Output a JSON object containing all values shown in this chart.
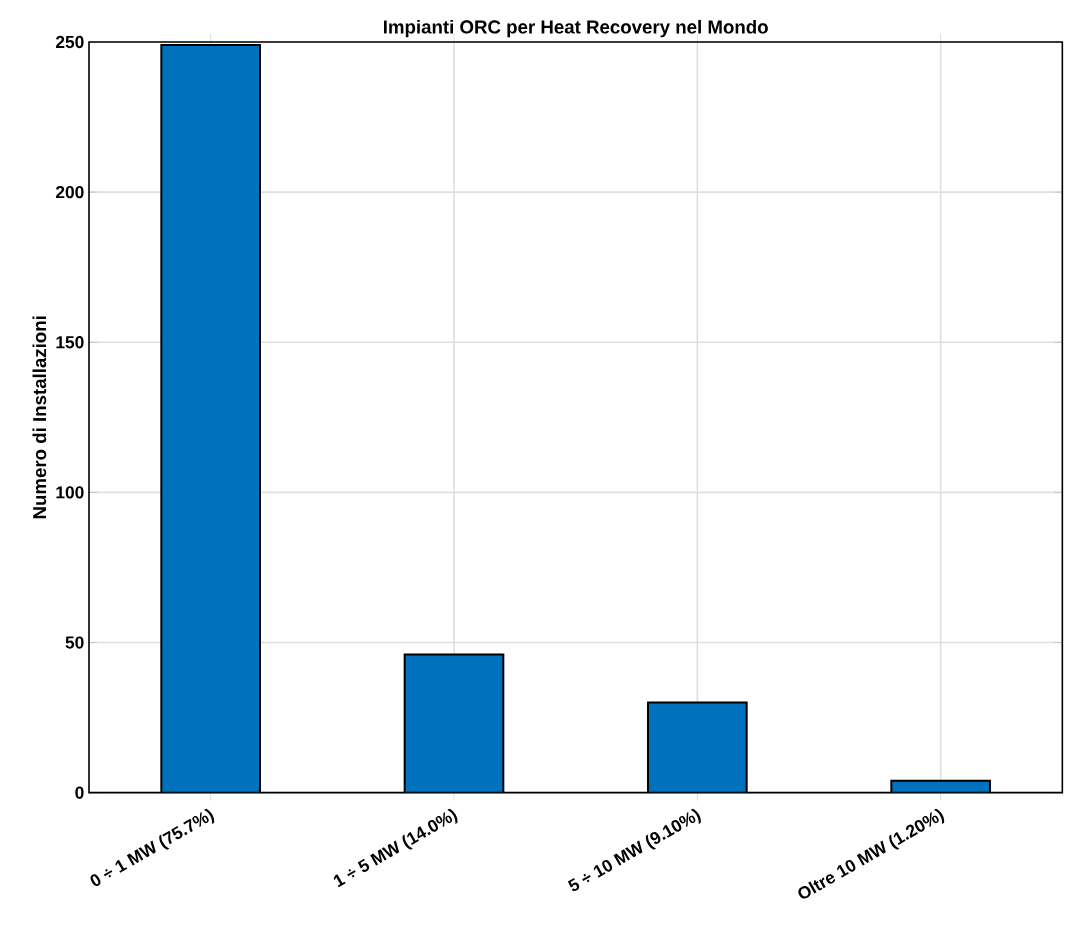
{
  "chart_data": {
    "type": "bar",
    "title": "Impianti ORC per Heat Recovery nel Mondo",
    "ylabel": "Numero di Installazioni",
    "categories": [
      "0 ÷ 1 MW (75.7%)",
      "1 ÷ 5 MW (14.0%)",
      "5 ÷ 10 MW (9.10%)",
      "Oltre 10 MW (1.20%)"
    ],
    "values": [
      249,
      46,
      30,
      4
    ],
    "color": "#0072bd",
    "ylim": [
      0,
      250
    ],
    "yticks": [
      0,
      50,
      100,
      150,
      200,
      250
    ],
    "grid": true
  }
}
